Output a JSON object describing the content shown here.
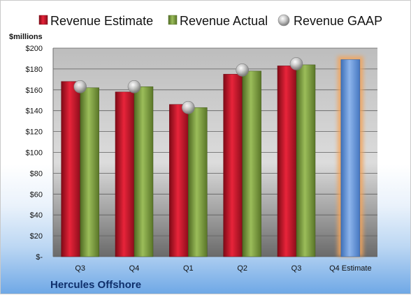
{
  "chart_data": {
    "type": "bar",
    "units_label": "$millions",
    "company": "Hercules Offshore",
    "categories": [
      "Q3",
      "Q4",
      "Q1",
      "Q2",
      "Q3",
      "Q4 Estimate"
    ],
    "ylim": [
      0,
      200
    ],
    "y_tick_values": [
      0,
      20,
      40,
      60,
      80,
      100,
      120,
      140,
      160,
      180,
      200
    ],
    "y_tick_labels": [
      "$-",
      "$20",
      "$40",
      "$60",
      "$80",
      "$100",
      "$120",
      "$140",
      "$160",
      "$180",
      "$200"
    ],
    "grid": true,
    "legend_position": "top",
    "series": [
      {
        "name": "Revenue Estimate",
        "type": "bar",
        "color": "#c8102e",
        "values": [
          168,
          158,
          146,
          175,
          183,
          null
        ]
      },
      {
        "name": "Revenue Actual",
        "type": "bar",
        "color": "#7f9f3f",
        "values": [
          162,
          163,
          143,
          178,
          184,
          null
        ]
      },
      {
        "name": "Revenue GAAP",
        "type": "marker",
        "color": "#b8b8b8",
        "values": [
          163,
          163,
          143,
          179,
          185,
          null
        ]
      },
      {
        "name": "Q4 Estimate",
        "type": "bar",
        "color": "#5b8fd6",
        "highlight": "#f2a45c",
        "values": [
          null,
          null,
          null,
          null,
          null,
          189
        ],
        "in_legend": false
      }
    ]
  }
}
